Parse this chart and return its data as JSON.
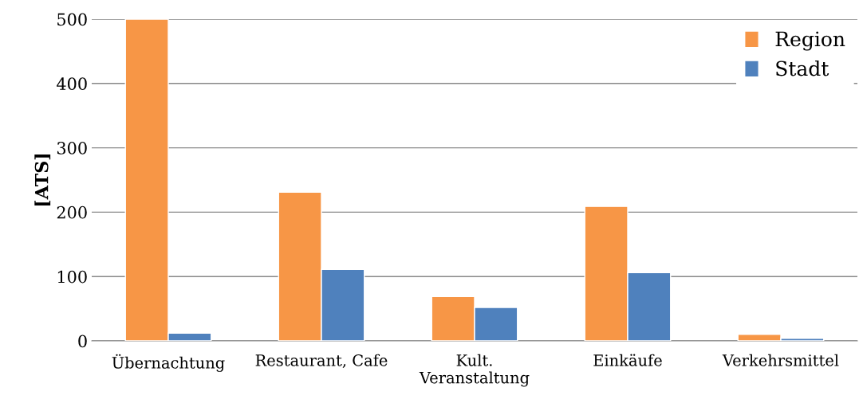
{
  "chart_data": {
    "type": "bar",
    "ylabel": "[ATS]",
    "categories": [
      "Übernachtung",
      "Restaurant, Cafe",
      "Kult.\nVeranstaltung",
      "Einkäufe",
      "Verkehrsmittel"
    ],
    "series": [
      {
        "name": "Region",
        "color": "#f79646",
        "values": [
          500,
          231,
          69,
          209,
          10
        ]
      },
      {
        "name": "Stadt",
        "color": "#4f81bd",
        "values": [
          12,
          111,
          52,
          106,
          4
        ]
      }
    ],
    "ylim": [
      0,
      500
    ],
    "yticks": [
      0,
      100,
      200,
      300,
      400,
      500
    ],
    "grid": "y",
    "legend": "top right"
  }
}
